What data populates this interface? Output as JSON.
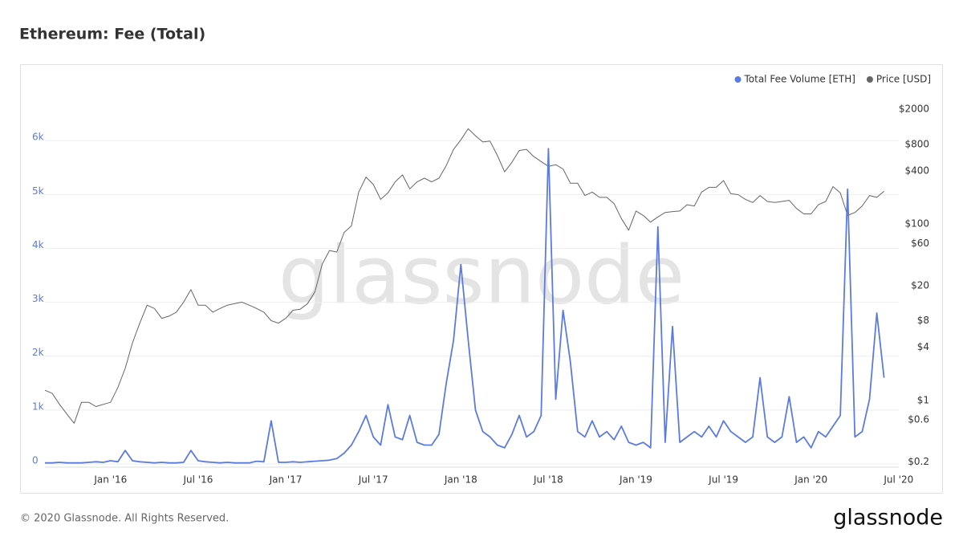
{
  "chart_data": {
    "type": "line",
    "title": "Ethereum: Fee (Total)",
    "watermark": "glassnode",
    "categories": [
      null,
      null,
      null,
      null,
      null,
      null,
      null,
      null,
      null,
      "Jan '16",
      null,
      null,
      null,
      null,
      null,
      null,
      null,
      null,
      null,
      null,
      null,
      "Jul '16",
      null,
      null,
      null,
      null,
      null,
      null,
      null,
      null,
      null,
      null,
      null,
      "Jan '17",
      null,
      null,
      null,
      null,
      null,
      null,
      null,
      null,
      null,
      null,
      null,
      "Jul '17",
      null,
      null,
      null,
      null,
      null,
      null,
      null,
      null,
      null,
      null,
      null,
      "Jan '18",
      null,
      null,
      null,
      null,
      null,
      null,
      null,
      null,
      null,
      null,
      null,
      "Jul '18",
      null,
      null,
      null,
      null,
      null,
      null,
      null,
      null,
      null,
      null,
      null,
      "Jan '19",
      null,
      null,
      null,
      null,
      null,
      null,
      null,
      null,
      null,
      null,
      null,
      "Jul '19",
      null,
      null,
      null,
      null,
      null,
      null,
      null,
      null,
      null,
      null,
      null,
      "Jan '20",
      null,
      null,
      null,
      null,
      null,
      null,
      null,
      null,
      null,
      null,
      null,
      "Jul '20"
    ],
    "series": [
      {
        "name": "Total Fee Volume [ETH]",
        "color": "#5b7be0",
        "values": [
          20,
          20,
          30,
          20,
          20,
          20,
          30,
          40,
          30,
          60,
          40,
          250,
          60,
          40,
          30,
          20,
          30,
          20,
          20,
          30,
          250,
          60,
          40,
          30,
          20,
          30,
          20,
          20,
          20,
          50,
          40,
          800,
          30,
          30,
          40,
          30,
          40,
          50,
          60,
          70,
          100,
          200,
          350,
          600,
          900,
          500,
          350,
          1100,
          500,
          450,
          900,
          400,
          350,
          350,
          550,
          1500,
          2300,
          3700,
          2300,
          1000,
          600,
          500,
          350,
          300,
          550,
          900,
          500,
          600,
          900,
          5850,
          1200,
          2850,
          1900,
          600,
          500,
          800,
          500,
          600,
          450,
          700,
          400,
          350,
          400,
          300,
          4400,
          400,
          2550,
          400,
          500,
          600,
          500,
          700,
          500,
          800,
          600,
          500,
          400,
          500,
          1600,
          500,
          400,
          500,
          1250,
          400,
          500,
          300,
          600,
          500,
          700,
          900,
          5100,
          500,
          600,
          1200,
          2800,
          1600,
          null,
          null
        ]
      },
      {
        "name": "Price [USD]",
        "color": "#666666",
        "axis": "y2",
        "values": [
          1.3,
          1.2,
          0.9,
          0.7,
          0.55,
          0.95,
          0.95,
          0.85,
          0.9,
          0.95,
          1.4,
          2.3,
          4.5,
          7.5,
          12,
          11,
          8.5,
          9,
          10,
          13,
          18,
          12,
          12,
          10,
          11,
          12,
          12.5,
          13,
          12,
          11,
          10,
          8,
          7.5,
          8.5,
          10.5,
          10.8,
          12.5,
          17,
          35,
          50,
          48,
          80,
          95,
          230,
          340,
          280,
          190,
          225,
          300,
          360,
          250,
          300,
          330,
          300,
          330,
          460,
          700,
          900,
          1200,
          1000,
          850,
          870,
          600,
          390,
          500,
          680,
          700,
          580,
          510,
          450,
          470,
          420,
          290,
          290,
          210,
          230,
          200,
          200,
          170,
          115,
          85,
          140,
          125,
          105,
          120,
          135,
          138,
          140,
          165,
          160,
          230,
          260,
          260,
          310,
          220,
          215,
          190,
          175,
          210,
          180,
          175,
          180,
          185,
          150,
          130,
          130,
          165,
          180,
          265,
          225,
          125,
          135,
          160,
          210,
          200,
          235,
          null,
          null
        ]
      }
    ],
    "ylim": [
      0,
      7000
    ],
    "yticks": [
      0,
      {
        "value": 1000,
        "label": "1k"
      },
      {
        "value": 2000,
        "label": "2k"
      },
      {
        "value": 3000,
        "label": "3k"
      },
      {
        "value": 4000,
        "label": "4k"
      },
      {
        "value": 5000,
        "label": "5k"
      },
      {
        "value": 6000,
        "label": "6k"
      }
    ],
    "y2lim": [
      0.19,
      3600
    ],
    "y2log": true,
    "y2ticks": [
      {
        "value": 0.2,
        "label": "$0.2"
      },
      {
        "value": 0.6,
        "label": "$0.6"
      },
      {
        "value": 1,
        "label": "$1"
      },
      {
        "value": 4,
        "label": "$4"
      },
      {
        "value": 8,
        "label": "$8"
      },
      {
        "value": 20,
        "label": "$20"
      },
      {
        "value": 60,
        "label": "$60"
      },
      {
        "value": 100,
        "label": "$100"
      },
      {
        "value": 400,
        "label": "$400"
      },
      {
        "value": 800,
        "label": "$800"
      },
      {
        "value": 2000,
        "label": "$2000"
      }
    ],
    "grid": true,
    "legend": "top-right"
  },
  "footer": "© 2020 Glassnode. All Rights Reserved.",
  "logo": "glassnode"
}
